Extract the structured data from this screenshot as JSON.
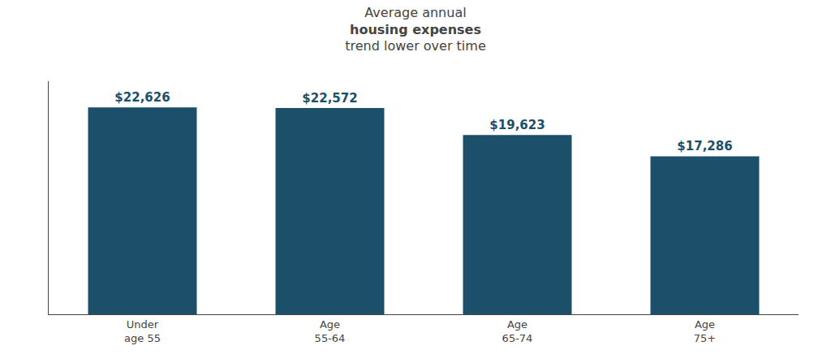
{
  "chart_data": {
    "type": "bar",
    "title": "Average annual\nhousing expenses\ntrend lower over time",
    "categories": [
      "Under\nage 55",
      "Age\n55-64",
      "Age\n65-74",
      "Age\n75+"
    ],
    "values": [
      22626,
      22572,
      19623,
      17286
    ],
    "value_labels": [
      "$22,626",
      "$22,572",
      "$19,623",
      "$17,286"
    ],
    "color": "#1b4f6a",
    "ylim": [
      0,
      25500
    ],
    "grid": false,
    "data_labels": true,
    "tick_labels": "x"
  }
}
